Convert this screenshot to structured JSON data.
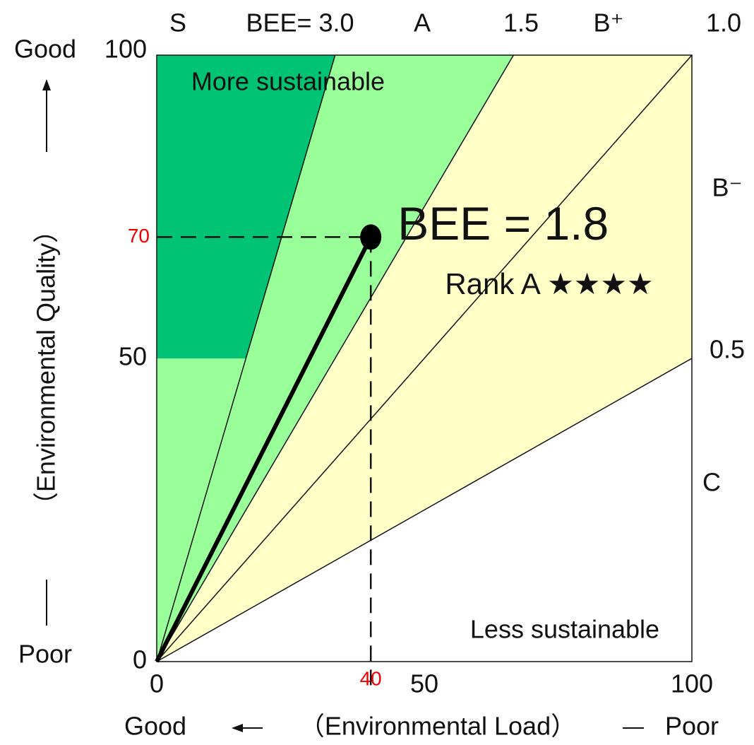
{
  "chart_data": {
    "type": "bee",
    "xlim": [
      0,
      100
    ],
    "ylim": [
      0,
      100
    ],
    "xticks": [
      0,
      50,
      100
    ],
    "yticks": [
      0,
      50,
      100
    ],
    "x_label": "（Environmental Load）",
    "x_good": "Good",
    "x_poor": "Poor",
    "y_label": "（Environmental Quality）",
    "y_good": "Good",
    "y_poor": "Poor",
    "boundaries": [
      {
        "value": 3.0,
        "label": "BEE= 3.0"
      },
      {
        "value": 1.5,
        "label": "1.5"
      },
      {
        "value": 1.0,
        "label": "1.0"
      },
      {
        "value": 0.5,
        "label": "0.5"
      }
    ],
    "ranks": [
      {
        "label": "S",
        "color": "#00c473"
      },
      {
        "label": "A",
        "color": "#99ff99"
      },
      {
        "label": "B⁺",
        "color": "#ffffc8"
      },
      {
        "label": "B⁻",
        "color": "#ffffc8"
      },
      {
        "label": "C",
        "color": "#ffffff"
      }
    ],
    "s_min_quality": 50,
    "point": {
      "x": 40,
      "y": 70,
      "label": "BEE = 1.8",
      "rank": "Rank A ★★★★"
    },
    "top_note": "More sustainable",
    "bottom_note": "Less sustainable"
  }
}
